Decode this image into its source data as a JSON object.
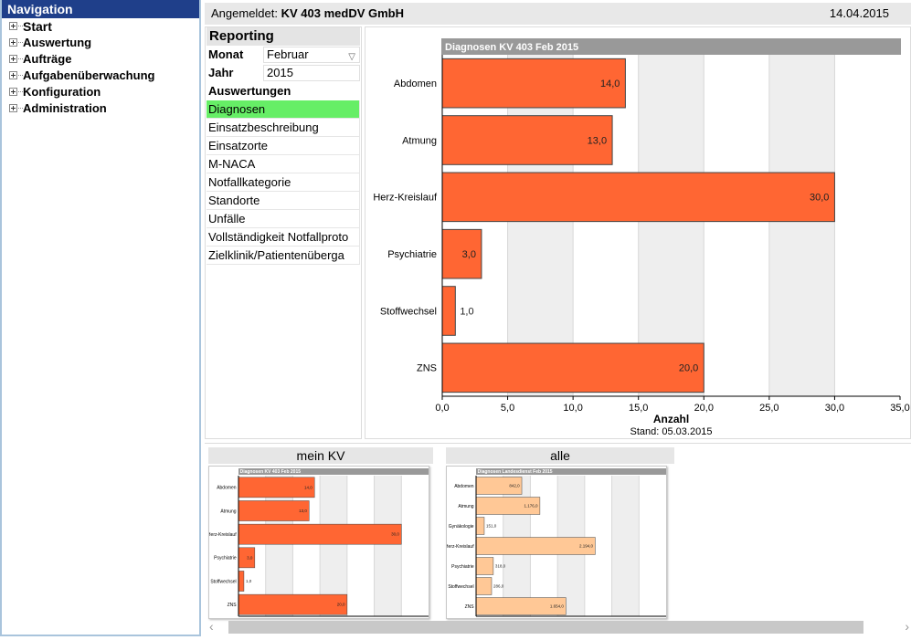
{
  "nav": {
    "title": "Navigation",
    "items": [
      {
        "label": "Start",
        "name": "start"
      },
      {
        "label": "Auswertung",
        "name": "auswertung"
      },
      {
        "label": "Aufträge",
        "name": "auftraege"
      },
      {
        "label": "Aufgabenüberwachung",
        "name": "aufgabenueberwachung"
      },
      {
        "label": "Konfiguration",
        "name": "konfiguration"
      },
      {
        "label": "Administration",
        "name": "administration"
      }
    ]
  },
  "header": {
    "login_label": "Angemeldet:",
    "user": "KV 403 medDV GmbH",
    "date": "14.04.2015"
  },
  "reporting": {
    "title": "Reporting",
    "month_label": "Monat",
    "month_value": "Februar",
    "year_label": "Jahr",
    "year_value": "2015",
    "reports_heading": "Auswertungen",
    "items": [
      {
        "label": "Diagnosen",
        "active": true
      },
      {
        "label": "Einsatzbeschreibung",
        "active": false
      },
      {
        "label": "Einsatzorte",
        "active": false
      },
      {
        "label": "M-NACA",
        "active": false
      },
      {
        "label": "Notfallkategorie",
        "active": false
      },
      {
        "label": "Standorte",
        "active": false
      },
      {
        "label": "Unfälle",
        "active": false
      },
      {
        "label": "Vollständigkeit Notfallproto",
        "active": false
      },
      {
        "label": "Zielklinik/Patientenüberga",
        "active": false
      }
    ]
  },
  "thumbnails": {
    "tab_mein_kv": "mein KV",
    "tab_alle": "alle"
  },
  "colors": {
    "bar": "#ff6633",
    "bar_light": "#ffc896",
    "chart_header": "#999999",
    "active_item": "#66ee66",
    "nav_header": "#1f3f8a"
  },
  "chart_data": [
    {
      "type": "bar",
      "orientation": "horizontal",
      "title": "Diagnosen KV 403 Feb 2015",
      "categories": [
        "Abdomen",
        "Atmung",
        "Herz-Kreislauf",
        "Psychiatrie",
        "Stoffwechsel",
        "ZNS"
      ],
      "values": [
        14,
        13,
        30,
        3,
        1,
        20
      ],
      "value_labels": [
        "14,0",
        "13,0",
        "30,0",
        "3,0",
        "1,0",
        "20,0"
      ],
      "xlabel": "Anzahl",
      "footnote": "Stand: 05.03.2015",
      "xlim": [
        0,
        35
      ],
      "ticks": [
        "0,0",
        "5,0",
        "10,0",
        "15,0",
        "20,0",
        "25,0",
        "30,0",
        "35,0"
      ],
      "grid": true
    },
    {
      "type": "bar",
      "orientation": "horizontal",
      "title": "Diagnosen KV 403 Feb 2015",
      "categories": [
        "Abdomen",
        "Atmung",
        "Herz-Kreislauf",
        "Psychiatrie",
        "Stoffwechsel",
        "ZNS"
      ],
      "values": [
        14,
        13,
        30,
        3,
        1,
        20
      ],
      "value_labels": [
        "14,0",
        "13,0",
        "30,0",
        "3,0",
        "1,0",
        "20,0"
      ],
      "xlim": [
        0,
        35
      ]
    },
    {
      "type": "bar",
      "orientation": "horizontal",
      "title": "Diagnosen Landesdienst Feb 2015",
      "categories": [
        "Abdomen",
        "Atmung",
        "Gynäkologie",
        "Herz-Kreislauf",
        "Psychiatrie",
        "Stoffwechsel",
        "ZNS"
      ],
      "values": [
        842,
        1176,
        151,
        2194,
        318,
        286,
        1654
      ],
      "value_labels": [
        "842,0",
        "1.176,0",
        "151,0",
        "2.194,0",
        "318,0",
        "286,0",
        "1.654,0"
      ],
      "xlim": [
        0,
        3500
      ]
    }
  ]
}
